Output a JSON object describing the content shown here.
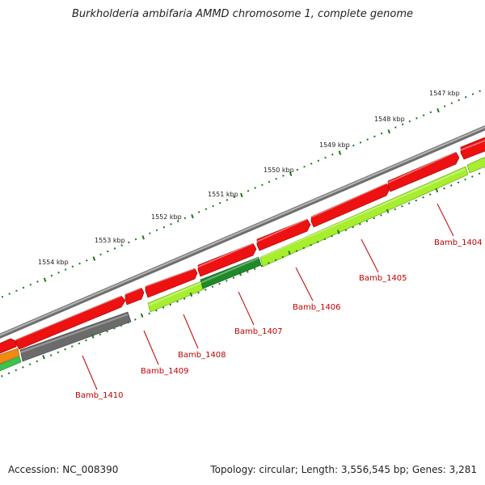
{
  "title": "Burkholderia ambifaria AMMD chromosome 1, complete genome",
  "footer": {
    "accession": "Accession: NC_008390",
    "summary": "Topology: circular; Length: 3,556,545 bp; Genes: 3,281"
  },
  "colors": {
    "backbone": "#8a8a8a",
    "cds": "#ee1111",
    "gene_lightgreen": "#a6ee2e",
    "gene_darkgreen": "#1f8a2a",
    "gene_gray": "#6b6b6b",
    "gene_orange": "#f08a10",
    "gene_green": "#3cc44a",
    "ticks": "#1a7a1a",
    "label": "#c00000"
  },
  "tick_labels": [
    "1547 kbp",
    "1548 kbp",
    "1549 kbp",
    "1550 kbp",
    "1551 kbp",
    "1552 kbp",
    "1553 kbp",
    "1554 kbp"
  ],
  "gene_labels": [
    "Bamb_1404",
    "Bamb_1405",
    "Bamb_1406",
    "Bamb_1407",
    "Bamb_1408",
    "Bamb_1409",
    "Bamb_1410"
  ]
}
